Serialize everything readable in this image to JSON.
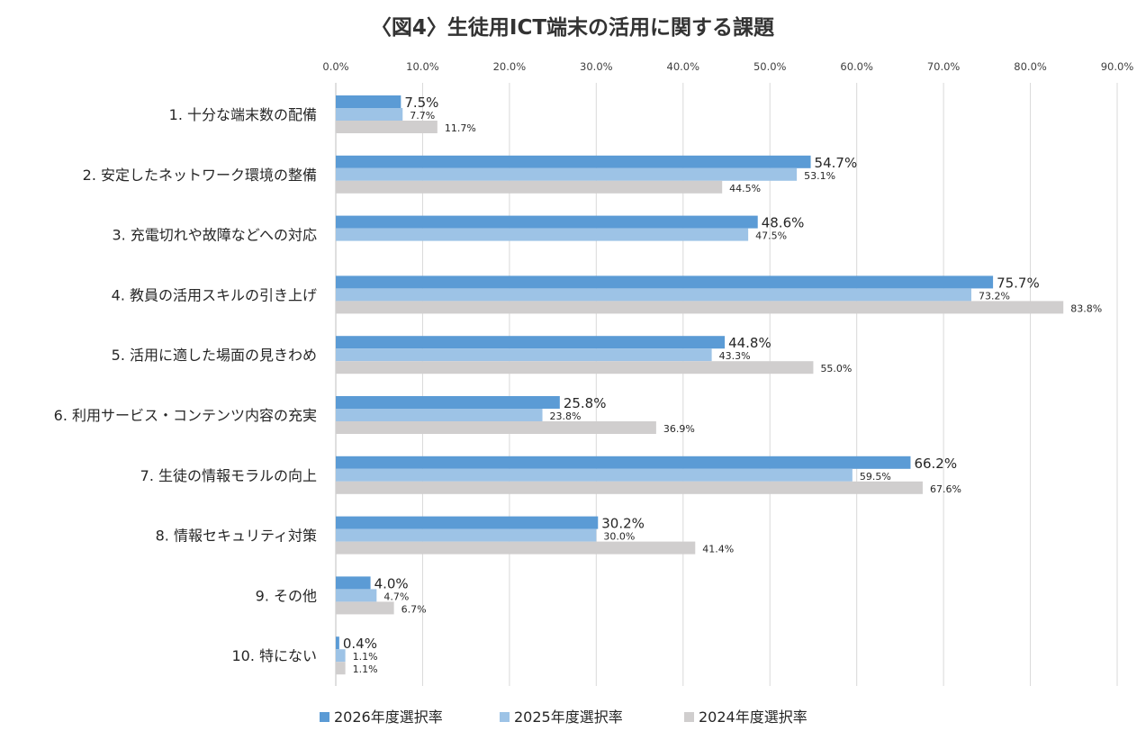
{
  "chart_data": {
    "type": "bar",
    "orientation": "horizontal",
    "title": "〈図4〉生徒用ICT端末の活用に関する課題",
    "categories": [
      "1. 十分な端末数の配備",
      "2. 安定したネットワーク環境の整備",
      "3. 充電切れや故障などへの対応",
      "4. 教員の活用スキルの引き上げ",
      "5. 活用に適した場面の見きわめ",
      "6. 利用サービス・コンテンツ内容の充実",
      "7. 生徒の情報モラルの向上",
      "8. 情報セキュリティ対策",
      "9. その他",
      "10. 特にない"
    ],
    "series": [
      {
        "name": "2026年度選択率",
        "color": "#5b9bd5",
        "values": [
          7.5,
          54.7,
          48.6,
          75.7,
          44.8,
          25.8,
          66.2,
          30.2,
          4.0,
          0.4
        ],
        "labels": [
          "7.5%",
          "54.7%",
          "48.6%",
          "75.7%",
          "44.8%",
          "25.8%",
          "66.2%",
          "30.2%",
          "4.0%",
          "0.4%"
        ]
      },
      {
        "name": "2025年度選択率",
        "color": "#9dc3e6",
        "values": [
          7.7,
          53.1,
          47.5,
          73.2,
          43.3,
          23.8,
          59.5,
          30.0,
          4.7,
          1.1
        ],
        "labels": [
          "7.7%",
          "53.1%",
          "47.5%",
          "73.2%",
          "43.3%",
          "23.8%",
          "59.5%",
          "30.0%",
          "4.7%",
          "1.1%"
        ]
      },
      {
        "name": "2024年度選択率",
        "color": "#d0cece",
        "values": [
          11.7,
          44.5,
          null,
          83.8,
          55.0,
          36.9,
          67.6,
          41.4,
          6.7,
          1.1
        ],
        "labels": [
          "11.7%",
          "44.5%",
          null,
          "83.8%",
          "55.0%",
          "36.9%",
          "67.6%",
          "41.4%",
          "6.7%",
          "1.1%"
        ]
      }
    ],
    "xlim": [
      0,
      90
    ],
    "xticks": [
      0,
      10,
      20,
      30,
      40,
      50,
      60,
      70,
      80,
      90
    ],
    "xtick_labels": [
      "0.0%",
      "10.0%",
      "20.0%",
      "30.0%",
      "40.0%",
      "50.0%",
      "60.0%",
      "70.0%",
      "80.0%",
      "90.0%"
    ],
    "xaxis_position": "top",
    "grid": true,
    "legend_position": "bottom"
  }
}
